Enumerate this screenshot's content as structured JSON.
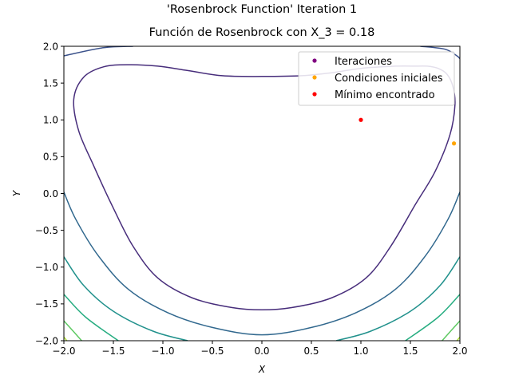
{
  "chart_data": {
    "type": "contour",
    "suptitle": "'Rosenbrock Function' Iteration 1",
    "title": "Función de Rosenbrock con X_3 = 0.18",
    "xlabel": "X",
    "ylabel": "Y",
    "xlim": [
      -2.0,
      2.0
    ],
    "ylim": [
      -2.0,
      2.0
    ],
    "xticks": [
      -2.0,
      -1.5,
      -1.0,
      -0.5,
      0.0,
      0.5,
      1.0,
      1.5,
      2.0
    ],
    "yticks": [
      -2.0,
      -1.5,
      -1.0,
      -0.5,
      0.0,
      0.5,
      1.0,
      1.5,
      2.0
    ],
    "xtick_labels": [
      "−2.0",
      "−1.5",
      "−1.0",
      "−0.5",
      "0.0",
      "0.5",
      "1.0",
      "1.5",
      "2.0"
    ],
    "ytick_labels": [
      "−2.0",
      "−1.5",
      "−1.0",
      "−0.5",
      "0.0",
      "0.5",
      "1.0",
      "1.5",
      "2.0"
    ],
    "contours": [
      {
        "color": "#3b528b",
        "segments": [
          [
            [
              -2.0,
              1.87
            ],
            [
              -1.6,
              1.98
            ],
            [
              -1.3,
              2.0
            ]
          ],
          [
            [
              1.6,
              2.0
            ],
            [
              1.85,
              1.96
            ],
            [
              1.97,
              1.87
            ],
            [
              2.0,
              1.83
            ]
          ]
        ]
      },
      {
        "color": "#472d7b",
        "segments": [
          [
            [
              1.55,
              1.73
            ],
            [
              1.35,
              1.73
            ],
            [
              1.0,
              1.7
            ],
            [
              0.7,
              1.64
            ],
            [
              0.4,
              1.6
            ],
            [
              0.0,
              1.59
            ],
            [
              -0.4,
              1.6
            ],
            [
              -0.75,
              1.67
            ],
            [
              -1.05,
              1.73
            ],
            [
              -1.35,
              1.75
            ],
            [
              -1.6,
              1.72
            ],
            [
              -1.8,
              1.58
            ],
            [
              -1.9,
              1.28
            ],
            [
              -1.85,
              0.85
            ],
            [
              -1.7,
              0.38
            ],
            [
              -1.5,
              -0.2
            ],
            [
              -1.3,
              -0.72
            ],
            [
              -1.05,
              -1.15
            ],
            [
              -0.7,
              -1.42
            ],
            [
              -0.3,
              -1.55
            ],
            [
              0.0,
              -1.58
            ],
            [
              0.3,
              -1.55
            ],
            [
              0.7,
              -1.42
            ],
            [
              1.05,
              -1.15
            ],
            [
              1.3,
              -0.72
            ],
            [
              1.55,
              -0.15
            ],
            [
              1.75,
              0.3
            ],
            [
              1.9,
              0.8
            ],
            [
              1.95,
              1.2
            ],
            [
              1.93,
              1.45
            ],
            [
              1.87,
              1.62
            ],
            [
              1.78,
              1.7
            ],
            [
              1.67,
              1.73
            ],
            [
              1.55,
              1.73
            ]
          ]
        ]
      },
      {
        "color": "#31688e",
        "segments": [
          [
            [
              -2.0,
              0.02
            ],
            [
              -1.88,
              -0.35
            ],
            [
              -1.65,
              -0.85
            ],
            [
              -1.35,
              -1.3
            ],
            [
              -0.95,
              -1.62
            ],
            [
              -0.5,
              -1.82
            ],
            [
              0.0,
              -1.92
            ],
            [
              0.5,
              -1.82
            ],
            [
              0.95,
              -1.62
            ],
            [
              1.35,
              -1.3
            ],
            [
              1.65,
              -0.85
            ],
            [
              1.88,
              -0.35
            ],
            [
              2.0,
              0.02
            ]
          ]
        ]
      },
      {
        "color": "#21918c",
        "segments": [
          [
            [
              -2.0,
              -0.86
            ],
            [
              -1.8,
              -1.25
            ],
            [
              -1.5,
              -1.6
            ],
            [
              -1.1,
              -1.87
            ],
            [
              -0.75,
              -2.0
            ]
          ],
          [
            [
              0.75,
              -2.0
            ],
            [
              1.1,
              -1.87
            ],
            [
              1.5,
              -1.6
            ],
            [
              1.8,
              -1.25
            ],
            [
              2.0,
              -0.86
            ]
          ]
        ]
      },
      {
        "color": "#27ad81",
        "segments": [
          [
            [
              -2.0,
              -1.37
            ],
            [
              -1.78,
              -1.68
            ],
            [
              -1.45,
              -2.0
            ]
          ],
          [
            [
              1.45,
              -2.0
            ],
            [
              1.78,
              -1.68
            ],
            [
              2.0,
              -1.37
            ]
          ]
        ]
      },
      {
        "color": "#5ec962",
        "segments": [
          [
            [
              -2.0,
              -1.73
            ],
            [
              -1.82,
              -2.0
            ]
          ],
          [
            [
              1.82,
              -2.0
            ],
            [
              2.0,
              -1.73
            ]
          ]
        ]
      },
      {
        "color": "#aadc32",
        "segments": [
          [
            [
              -2.0,
              -1.95
            ],
            [
              -1.97,
              -2.0
            ]
          ],
          [
            [
              1.97,
              -2.0
            ],
            [
              2.0,
              -1.95
            ]
          ]
        ]
      }
    ],
    "series": [
      {
        "name": "Iteraciones",
        "color": "#800080",
        "points": []
      },
      {
        "name": "Condiciones iniciales",
        "color": "#ffa500",
        "points": [
          [
            1.94,
            0.68
          ]
        ]
      },
      {
        "name": "Mínimo encontrado",
        "color": "#ff0000",
        "points": [
          [
            1.0,
            1.0
          ]
        ]
      }
    ],
    "legend": "top-right",
    "grid": false
  }
}
